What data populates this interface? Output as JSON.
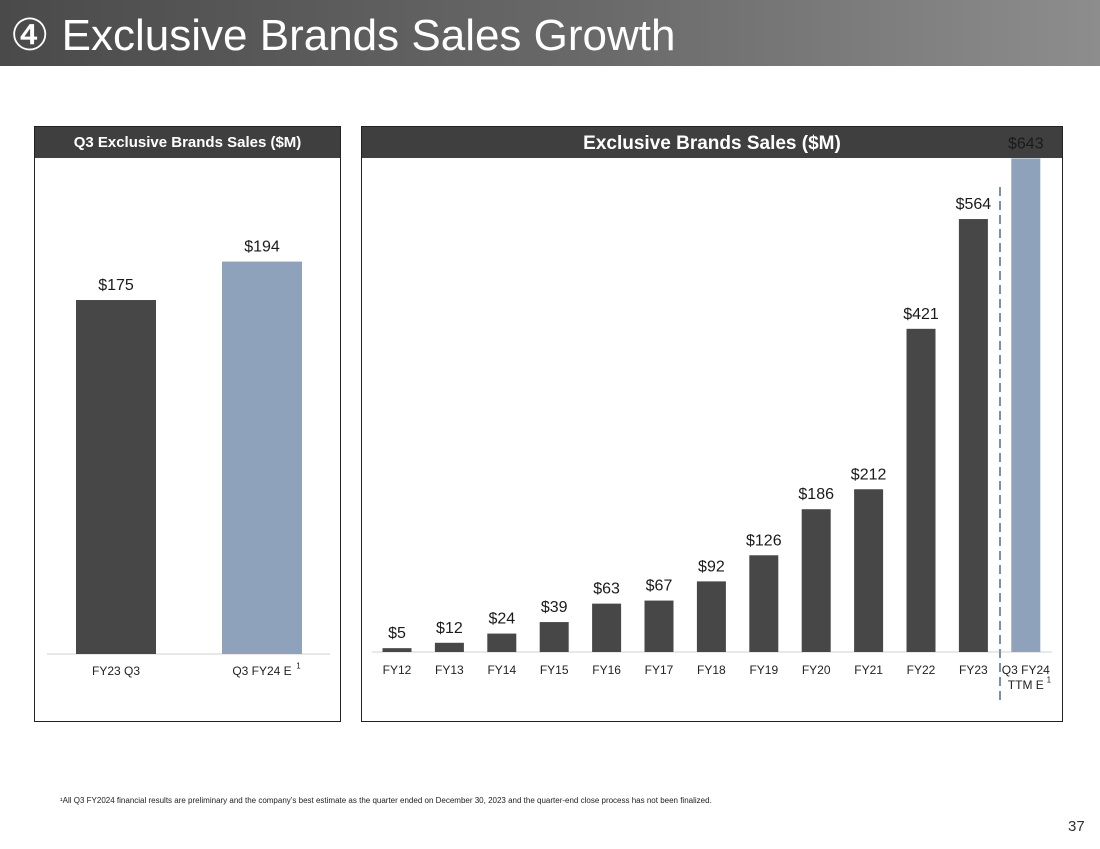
{
  "page": {
    "title": "④ Exclusive Brands Sales Growth",
    "footnote": "¹All Q3 FY2024 financial results are preliminary and the company’s best estimate as the quarter ended on December 30, 2023 and the quarter-end close process has not been finalized.",
    "page_number": "37"
  },
  "colors": {
    "actual": "#474747",
    "estimate": "#8ea2bb",
    "header": "#3f3f3f",
    "divider": "#7f8fa6"
  },
  "chart_data": [
    {
      "type": "bar",
      "title": "Q3 Exclusive Brands Sales ($M)",
      "xlabel": "",
      "ylabel": "",
      "ylim": [
        0,
        220
      ],
      "grid": false,
      "categories": [
        "FY23 Q3",
        "Q3 FY24 E"
      ],
      "category_superscripts": [
        "",
        "1"
      ],
      "values": [
        175,
        194
      ],
      "value_labels": [
        "$175",
        "$194"
      ],
      "estimate_flags": [
        false,
        true
      ]
    },
    {
      "type": "bar",
      "title": "Exclusive Brands Sales ($M)",
      "xlabel": "",
      "ylabel": "",
      "ylim": [
        0,
        680
      ],
      "grid": false,
      "categories": [
        "FY12",
        "FY13",
        "FY14",
        "FY15",
        "FY16",
        "FY17",
        "FY18",
        "FY19",
        "FY20",
        "FY21",
        "FY22",
        "FY23",
        "Q3 FY24 TTM E"
      ],
      "category_lines": [
        [
          "FY12"
        ],
        [
          "FY13"
        ],
        [
          "FY14"
        ],
        [
          "FY15"
        ],
        [
          "FY16"
        ],
        [
          "FY17"
        ],
        [
          "FY18"
        ],
        [
          "FY19"
        ],
        [
          "FY20"
        ],
        [
          "FY21"
        ],
        [
          "FY22"
        ],
        [
          "FY23"
        ],
        [
          "Q3 FY24",
          "TTM E"
        ]
      ],
      "category_superscripts": [
        "",
        "",
        "",
        "",
        "",
        "",
        "",
        "",
        "",
        "",
        "",
        "",
        "1"
      ],
      "values": [
        5,
        12,
        24,
        39,
        63,
        67,
        92,
        126,
        186,
        212,
        421,
        564,
        643
      ],
      "value_labels": [
        "$5",
        "$12",
        "$24",
        "$39",
        "$63",
        "$67",
        "$92",
        "$126",
        "$186",
        "$212",
        "$421",
        "$564",
        "$643"
      ],
      "estimate_flags": [
        false,
        false,
        false,
        false,
        false,
        false,
        false,
        false,
        false,
        false,
        false,
        false,
        true
      ],
      "annotations": [
        "dashed divider between FY23 and Q3 FY24 TTM E"
      ]
    }
  ]
}
